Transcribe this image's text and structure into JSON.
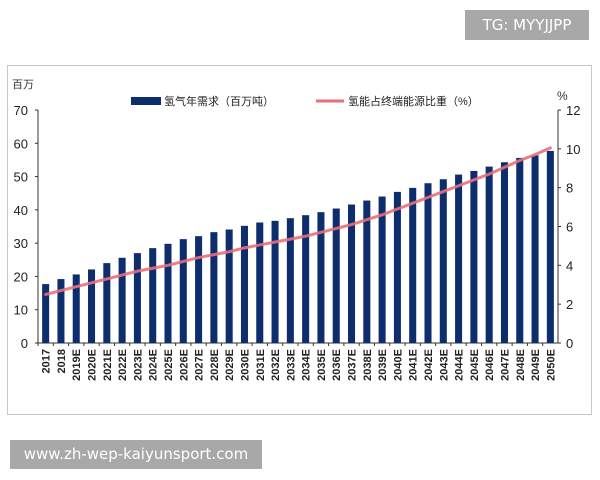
{
  "watermarks": {
    "top": "TG: MYYJJPP",
    "bottom": "www.zh-wep-kaiyunsport.com"
  },
  "chart_data": {
    "type": "bar",
    "title": "",
    "xlabel": "",
    "ylabel": "百万",
    "y2label": "%",
    "ylim": [
      0,
      70
    ],
    "y2lim": [
      0,
      12
    ],
    "yticks": [
      0,
      10,
      20,
      30,
      40,
      50,
      60,
      70
    ],
    "y2ticks": [
      0,
      2,
      4,
      6,
      8,
      10,
      12
    ],
    "grid": false,
    "legend_position": "top",
    "categories": [
      "2017",
      "2018",
      "2019E",
      "2020E",
      "2021E",
      "2022E",
      "2023E",
      "2024E",
      "2025E",
      "2026E",
      "2027E",
      "2028E",
      "2029E",
      "2030E",
      "2031E",
      "2032E",
      "2033E",
      "2034E",
      "2035E",
      "2036E",
      "2037E",
      "2038E",
      "2039E",
      "2040E",
      "2041E",
      "2042E",
      "2043E",
      "2044E",
      "2045E",
      "2046E",
      "2047E",
      "2048E",
      "2049E",
      "2050E"
    ],
    "series": [
      {
        "name": "氢气年需求（百万吨）",
        "type": "bar",
        "axis": "left",
        "color": "#0d2d6c",
        "values": [
          17.7,
          19.2,
          20.6,
          22.1,
          24.0,
          25.6,
          27.0,
          28.5,
          29.8,
          31.2,
          32.1,
          33.3,
          34.1,
          35.2,
          36.2,
          36.7,
          37.5,
          38.4,
          39.3,
          40.4,
          41.6,
          42.8,
          44.0,
          45.4,
          46.6,
          48.0,
          49.2,
          50.6,
          51.7,
          53.0,
          54.3,
          55.6,
          56.4,
          57.7
        ]
      },
      {
        "name": "氢能占终端能源比重（%）",
        "type": "line",
        "axis": "right",
        "color": "#e8707a",
        "values": [
          2.5,
          2.7,
          2.9,
          3.1,
          3.3,
          3.5,
          3.7,
          3.85,
          4.0,
          4.2,
          4.4,
          4.55,
          4.7,
          4.9,
          5.05,
          5.2,
          5.35,
          5.5,
          5.7,
          5.9,
          6.1,
          6.35,
          6.6,
          6.9,
          7.2,
          7.5,
          7.8,
          8.1,
          8.4,
          8.7,
          9.05,
          9.4,
          9.7,
          10.05
        ]
      }
    ]
  }
}
